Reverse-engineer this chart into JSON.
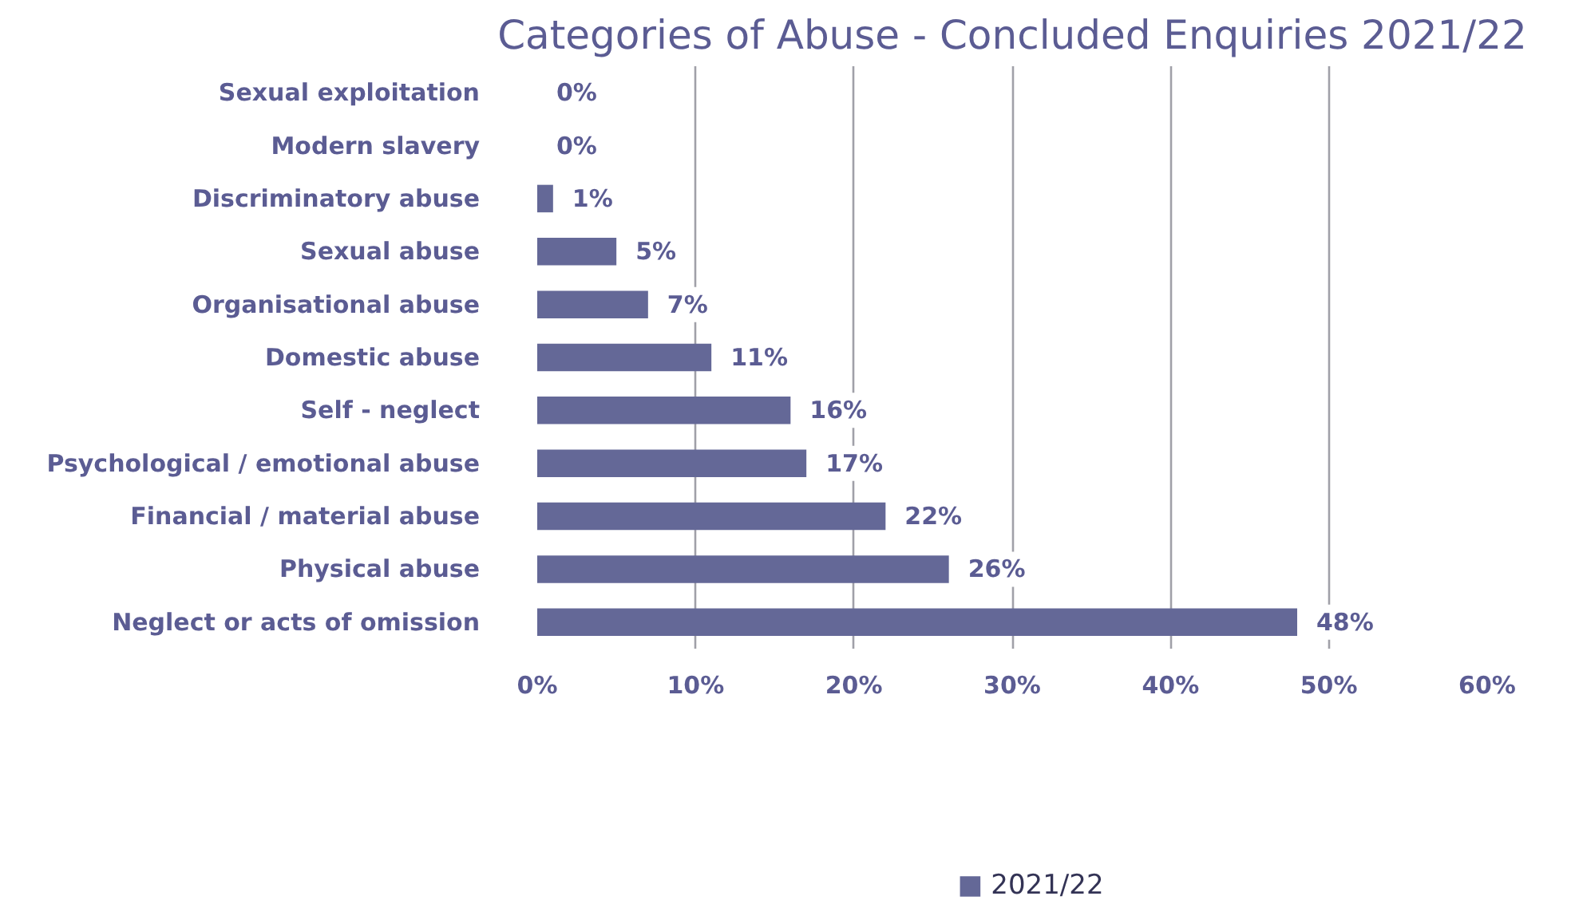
{
  "chart_data": {
    "type": "bar",
    "orientation": "horizontal",
    "title": "Categories of Abuse - Concluded Enquiries 2021/22",
    "categories": [
      "Sexual exploitation",
      "Modern slavery",
      "Discriminatory abuse",
      "Sexual abuse",
      "Organisational abuse",
      "Domestic abuse",
      "Self - neglect",
      "Psychological / emotional abuse",
      "Financial / material abuse",
      "Physical abuse",
      "Neglect or acts of omission"
    ],
    "series": [
      {
        "name": "2021/22",
        "color": "#646897",
        "values": [
          0,
          0,
          1,
          5,
          7,
          11,
          16,
          17,
          22,
          26,
          48
        ],
        "value_labels": [
          "0%",
          "0%",
          "1%",
          "5%",
          "7%",
          "11%",
          "16%",
          "17%",
          "22%",
          "26%",
          "48%"
        ]
      }
    ],
    "xlim": [
      0,
      60
    ],
    "xticks": [
      {
        "value": 0,
        "label": "0%"
      },
      {
        "value": 10,
        "label": "10%"
      },
      {
        "value": 20,
        "label": "20%"
      },
      {
        "value": 30,
        "label": "30%"
      },
      {
        "value": 40,
        "label": "40%"
      },
      {
        "value": 50,
        "label": "50%"
      },
      {
        "value": 60,
        "label": "60%"
      }
    ],
    "grid": "x",
    "legend": "bottom"
  }
}
